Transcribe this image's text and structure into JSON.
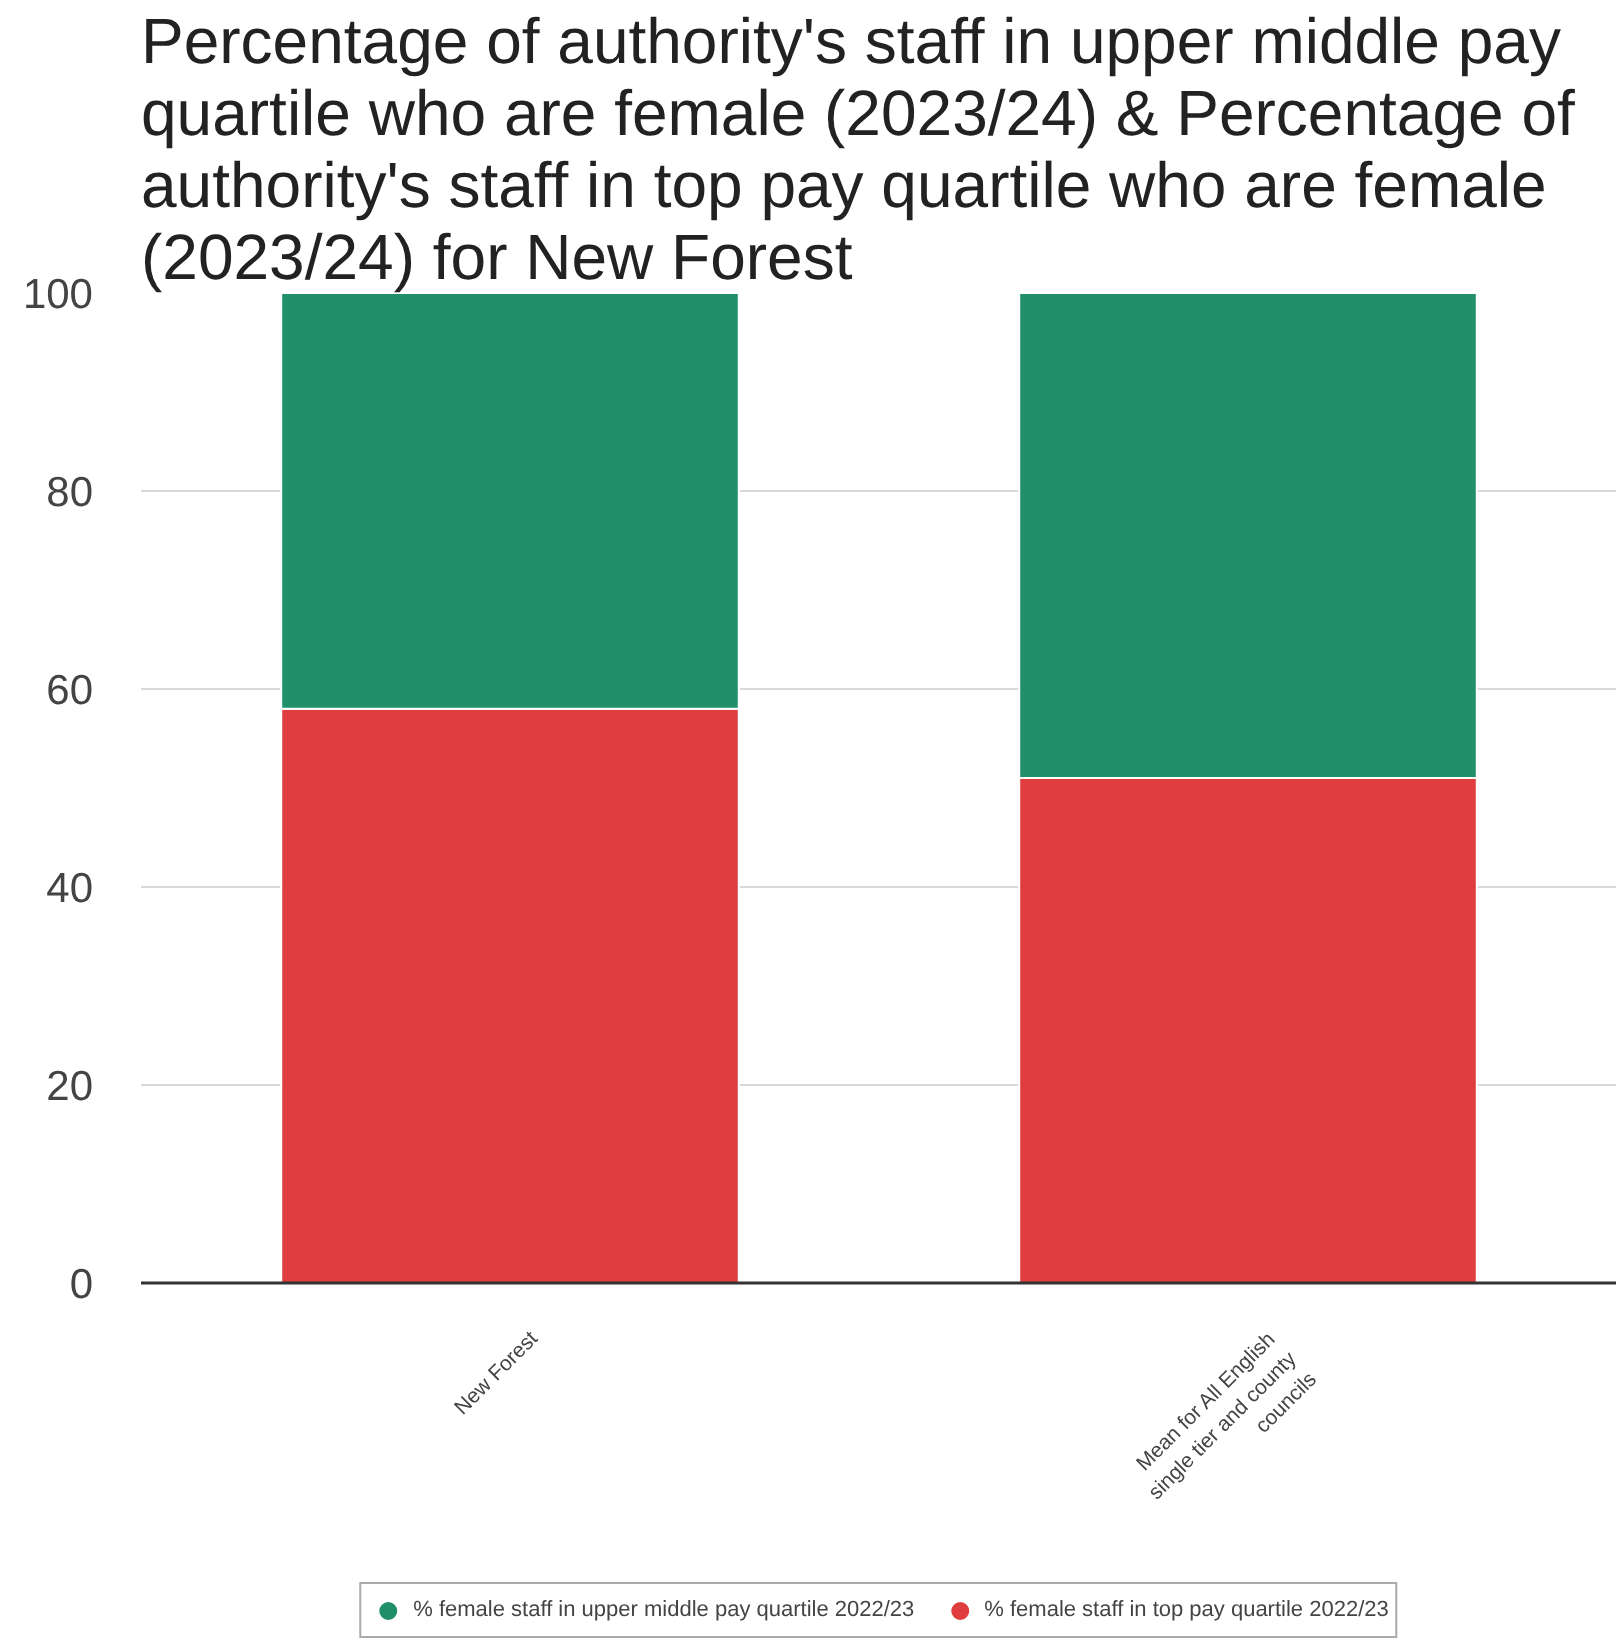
{
  "chart_data": {
    "type": "bar",
    "title": "Percentage of authority's staff in upper middle pay quartile who are female (2023/24) & Percentage of authority's staff in top pay quartile who are female (2023/24) for New Forest",
    "categories": [
      "New Forest",
      "Mean for All English single tier and county councils"
    ],
    "stacked": true,
    "series": [
      {
        "name": "% female staff in top pay quartile 2022/23",
        "color": "#e03e3e",
        "values": [
          58,
          51
        ]
      },
      {
        "name": "% female staff in upper middle pay quartile 2022/23",
        "color": "#21906a",
        "values": [
          42,
          49
        ]
      }
    ],
    "ylim": [
      0,
      100
    ],
    "yticks": [
      0,
      20,
      40,
      60,
      80,
      100
    ],
    "grid": "y",
    "legend": "bottom"
  }
}
